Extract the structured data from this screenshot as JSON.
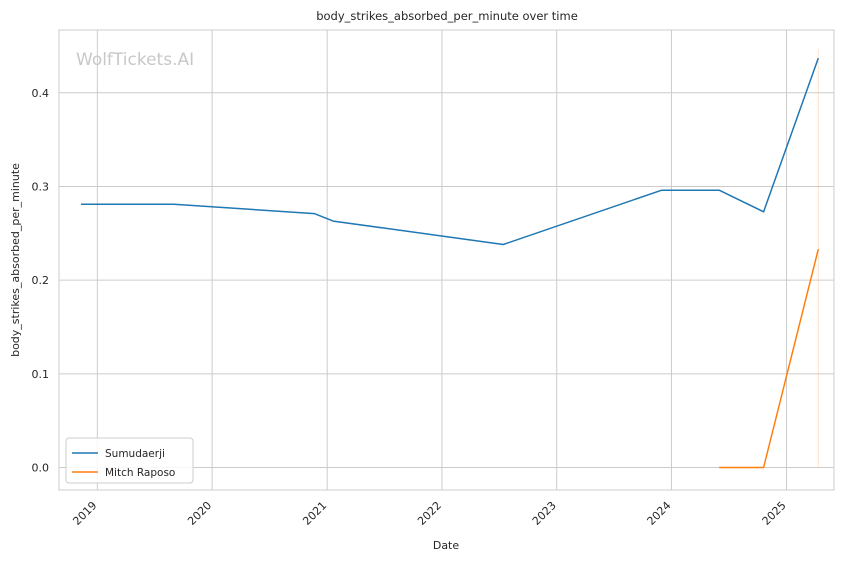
{
  "chart_data": {
    "type": "line",
    "title": "body_strikes_absorbed_per_minute over time",
    "xlabel": "Date",
    "ylabel": "body_strikes_absorbed_per_minute",
    "watermark": "WolfTickets.AI",
    "x_ticks": [
      "2019",
      "2020",
      "2021",
      "2022",
      "2023",
      "2024",
      "2025"
    ],
    "y_ticks": [
      "0.0",
      "0.1",
      "0.2",
      "0.3",
      "0.4"
    ],
    "xlim": [
      "2018-09-01",
      "2025-06-01"
    ],
    "ylim": [
      -0.024,
      0.467
    ],
    "grid": true,
    "legend_position": "lower-left",
    "series": [
      {
        "name": "Sumudaerji",
        "color": "#1f77b4",
        "points": [
          [
            "2018-11-10",
            0.281
          ],
          [
            "2019-09-01",
            0.281
          ],
          [
            "2020-11-21",
            0.271
          ],
          [
            "2021-01-20",
            0.263
          ],
          [
            "2022-07-15",
            0.238
          ],
          [
            "2023-12-01",
            0.296
          ],
          [
            "2024-06-01",
            0.296
          ],
          [
            "2024-10-20",
            0.273
          ],
          [
            "2025-04-12",
            0.437
          ]
        ]
      },
      {
        "name": "Mitch Raposo",
        "color": "#ff7f0e",
        "points": [
          [
            "2024-06-01",
            0.0
          ],
          [
            "2024-10-20",
            0.0
          ],
          [
            "2025-04-12",
            0.233
          ]
        ]
      }
    ]
  }
}
